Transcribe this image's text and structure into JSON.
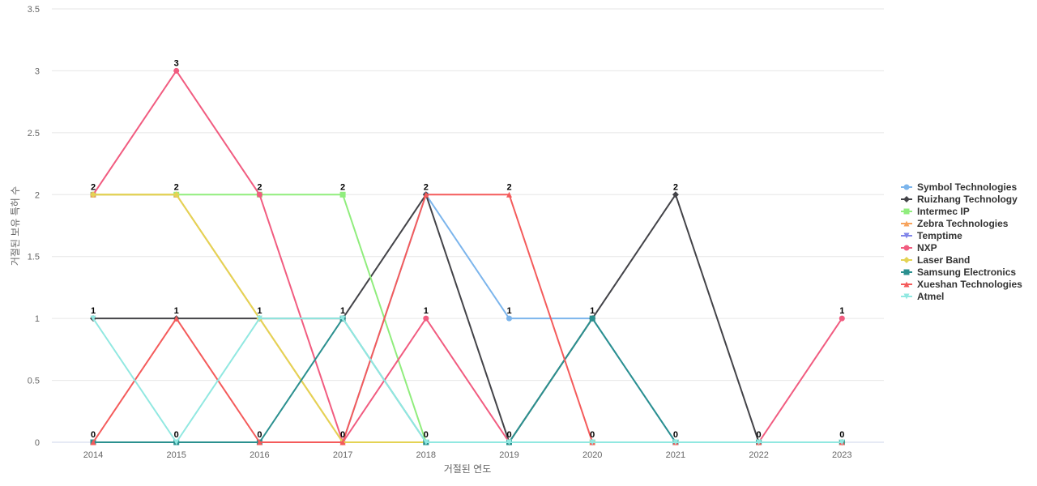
{
  "chart_data": {
    "type": "line",
    "xlabel": "거절된 연도",
    "ylabel": "거절된 보유 특허 수",
    "categories": [
      "2014",
      "2015",
      "2016",
      "2017",
      "2018",
      "2019",
      "2020",
      "2021",
      "2022",
      "2023"
    ],
    "ylim": [
      0,
      3.5
    ],
    "yticks": [
      0,
      0.5,
      1,
      1.5,
      2,
      2.5,
      3,
      3.5
    ],
    "ytick_labels": [
      "0",
      "0.5",
      "1",
      "1.5",
      "2",
      "2.5",
      "3",
      "3.5"
    ],
    "grid": "horizontal",
    "legend_position": "right",
    "series": [
      {
        "name": "Symbol Technologies",
        "color": "#7cb5ec",
        "marker": "circle",
        "values": [
          0,
          0,
          0,
          0,
          2,
          1,
          1,
          0,
          0,
          0
        ]
      },
      {
        "name": "Ruizhang Technology",
        "color": "#434348",
        "marker": "diamond",
        "values": [
          1,
          1,
          1,
          1,
          2,
          0,
          1,
          2,
          0,
          0
        ]
      },
      {
        "name": "Intermec IP",
        "color": "#90ed7d",
        "marker": "square",
        "values": [
          2,
          2,
          2,
          2,
          0,
          0,
          0,
          0,
          0,
          0
        ]
      },
      {
        "name": "Zebra Technologies",
        "color": "#f7a35c",
        "marker": "triangle",
        "values": [
          2,
          2,
          1,
          0,
          0,
          0,
          0,
          0,
          0,
          0
        ]
      },
      {
        "name": "Temptime",
        "color": "#8085e9",
        "marker": "triangle-down",
        "values": [
          0,
          0,
          0,
          0,
          0,
          0,
          0,
          0,
          0,
          0
        ]
      },
      {
        "name": "NXP",
        "color": "#f15c80",
        "marker": "circle",
        "values": [
          2,
          3,
          2,
          0,
          1,
          0,
          0,
          0,
          0,
          1
        ]
      },
      {
        "name": "Laser Band",
        "color": "#e4d354",
        "marker": "diamond",
        "values": [
          2,
          2,
          1,
          0,
          0,
          0,
          0,
          0,
          0,
          0
        ]
      },
      {
        "name": "Samsung Electronics",
        "color": "#2b908f",
        "marker": "square",
        "values": [
          0,
          0,
          0,
          1,
          0,
          0,
          1,
          0,
          0,
          0
        ]
      },
      {
        "name": "Xueshan Technologies",
        "color": "#f45b5b",
        "marker": "triangle",
        "values": [
          0,
          1,
          0,
          0,
          2,
          2,
          0,
          0,
          0,
          0
        ]
      },
      {
        "name": "Atmel",
        "color": "#91e8e1",
        "marker": "triangle-down",
        "values": [
          1,
          0,
          1,
          1,
          0,
          0,
          0,
          0,
          0,
          0
        ]
      }
    ],
    "point_labels": [
      {
        "x": "2014",
        "labels": [
          "0",
          "1",
          "2"
        ]
      },
      {
        "x": "2015",
        "labels": [
          "0",
          "1",
          "2",
          "3"
        ]
      },
      {
        "x": "2016",
        "labels": [
          "0",
          "1",
          "2"
        ]
      },
      {
        "x": "2017",
        "labels": [
          "0",
          "1",
          "2"
        ]
      },
      {
        "x": "2018",
        "labels": [
          "0",
          "1",
          "2"
        ]
      },
      {
        "x": "2019",
        "labels": [
          "0",
          "1",
          "2"
        ]
      },
      {
        "x": "2020",
        "labels": [
          "0",
          "1"
        ]
      },
      {
        "x": "2021",
        "labels": [
          "0",
          "2"
        ]
      },
      {
        "x": "2022",
        "labels": [
          "0"
        ]
      },
      {
        "x": "2023",
        "labels": [
          "0",
          "1"
        ]
      }
    ]
  }
}
